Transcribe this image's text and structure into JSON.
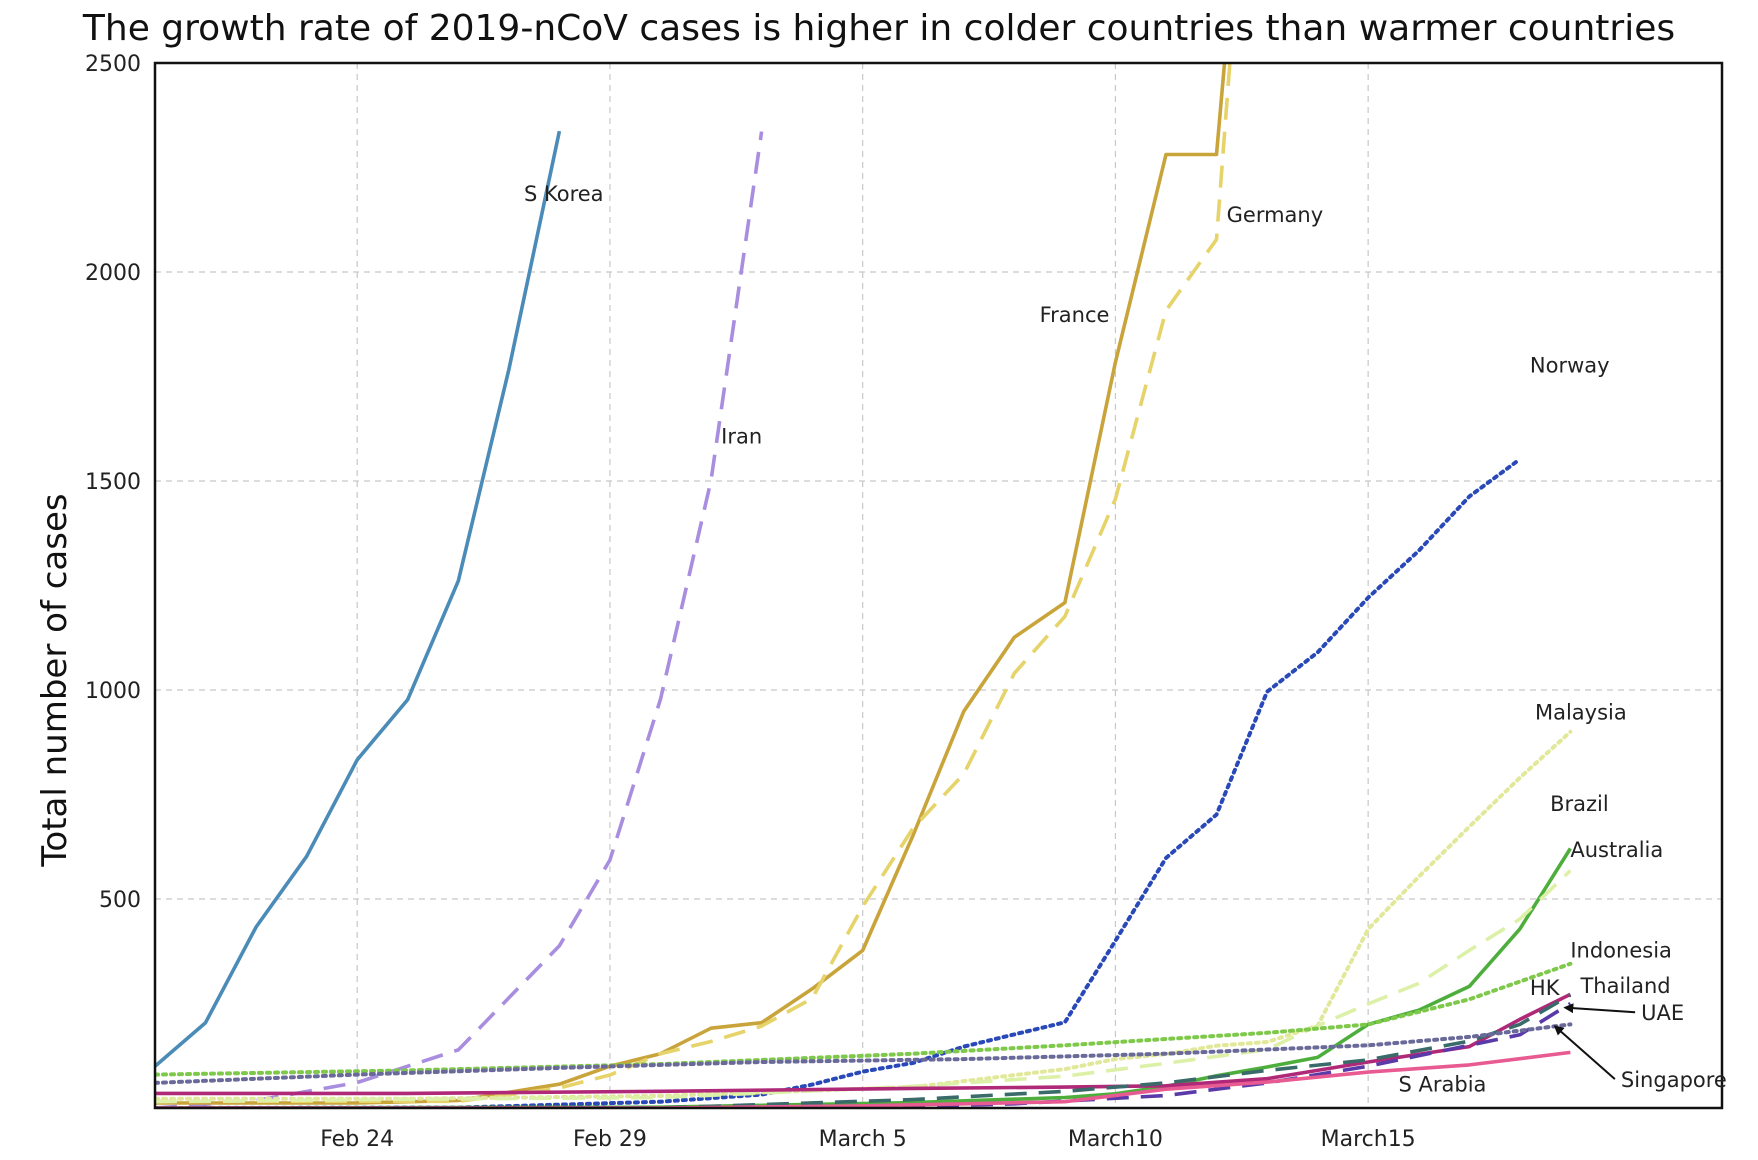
{
  "chart_data": {
    "type": "line",
    "title": "The growth rate of 2019-nCoV cases is higher in colder countries than warmer countries",
    "xlabel": "",
    "ylabel": "Total number of cases",
    "x_tick_labels": [
      "Feb 24",
      "Feb 29",
      "March 5",
      "March10",
      "March15"
    ],
    "x_tick_days": [
      4,
      9,
      14,
      19,
      24
    ],
    "y_ticks": [
      500,
      1000,
      1500,
      2000,
      2500
    ],
    "xlim": [
      0,
      31
    ],
    "ylim": [
      0,
      2500
    ],
    "grid": true,
    "legend": "inline labels",
    "series": [
      {
        "name": "S Korea",
        "color": "#4a8bb8",
        "dash": "solid",
        "label_day": 7.3,
        "label_value": 2170,
        "x": [
          0,
          1,
          2,
          3,
          4,
          5,
          6,
          7,
          8
        ],
        "values": [
          100,
          204,
          433,
          602,
          833,
          977,
          1261,
          1766,
          2337
        ]
      },
      {
        "name": "Iran",
        "color": "#a98ee0",
        "dash": "dashed",
        "label_day": 11.2,
        "label_value": 1590,
        "x": [
          0,
          2,
          4,
          6,
          8,
          9,
          10,
          11,
          12
        ],
        "values": [
          0,
          18,
          61,
          139,
          388,
          593,
          978,
          1501,
          2336
        ]
      },
      {
        "name": "France",
        "color": "#c9a43a",
        "dash": "solid",
        "label_day": 17.5,
        "label_value": 1880,
        "x": [
          0,
          2,
          4,
          6,
          8,
          9,
          10,
          11,
          12,
          13,
          14,
          15,
          16,
          17,
          18,
          19,
          20,
          21,
          22
        ],
        "values": [
          12,
          12,
          12,
          18,
          57,
          100,
          130,
          191,
          204,
          285,
          377,
          653,
          949,
          1126,
          1209,
          1784,
          2281,
          2281,
          3661
        ]
      },
      {
        "name": "Germany",
        "color": "#e6d36a",
        "dash": "dashed",
        "label_day": 21.2,
        "label_value": 2120,
        "x": [
          0,
          2,
          4,
          6,
          8,
          9,
          10,
          11,
          12,
          13,
          14,
          15,
          16,
          17,
          18,
          19,
          20,
          21,
          22
        ],
        "values": [
          16,
          16,
          16,
          16,
          48,
          79,
          130,
          159,
          196,
          262,
          482,
          670,
          799,
          1040,
          1176,
          1457,
          1908,
          2078,
          3675
        ]
      },
      {
        "name": "Norway",
        "color": "#2a49b8",
        "dash": "dotted",
        "label_day": 27.2,
        "label_value": 1760,
        "x": [
          0,
          6,
          10,
          12,
          13,
          14,
          15,
          16,
          17,
          18,
          19,
          20,
          21,
          22,
          23,
          24,
          25,
          26,
          27
        ],
        "values": [
          0,
          1,
          15,
          32,
          56,
          87,
          108,
          147,
          176,
          205,
          400,
          598,
          702,
          996,
          1090,
          1221,
          1333,
          1463,
          1552
        ]
      },
      {
        "name": "Malaysia",
        "color": "#e2e89a",
        "dash": "dotted",
        "label_day": 27.3,
        "label_value": 930,
        "x": [
          0,
          5,
          10,
          15,
          18,
          19,
          20,
          21,
          22,
          23,
          24,
          25,
          26,
          27,
          28
        ],
        "values": [
          22,
          22,
          29,
          50,
          93,
          117,
          129,
          149,
          158,
          197,
          428,
          553,
          673,
          790,
          900
        ]
      },
      {
        "name": "Brazil",
        "color": "#4eae3c",
        "dash": "solid",
        "label_day": 27.6,
        "label_value": 710,
        "x": [
          0,
          10,
          15,
          18,
          19,
          20,
          21,
          22,
          23,
          24,
          25,
          26,
          27,
          28
        ],
        "values": [
          0,
          2,
          13,
          25,
          34,
          52,
          77,
          98,
          121,
          200,
          234,
          291,
          428,
          621
        ]
      },
      {
        "name": "Australia",
        "color": "#ddf0a8",
        "dash": "dashed",
        "label_day": 28.0,
        "label_value": 600,
        "x": [
          0,
          5,
          10,
          15,
          18,
          20,
          22,
          23,
          24,
          25,
          26,
          27,
          28
        ],
        "values": [
          15,
          21,
          25,
          52,
          76,
          107,
          140,
          197,
          249,
          298,
          377,
          452,
          568
        ]
      },
      {
        "name": "Indonesia",
        "color": "#7ec84a",
        "dash": "dotted",
        "label_day": 28.0,
        "label_value": 360,
        "x": [
          0,
          5,
          10,
          15,
          18,
          20,
          22,
          24,
          26,
          28
        ],
        "values": [
          80,
          90,
          105,
          130,
          150,
          165,
          180,
          200,
          260,
          345
        ]
      },
      {
        "name": "Thailand",
        "color": "#b02878",
        "dash": "solid",
        "label_day": 28.2,
        "label_value": 275,
        "x": [
          0,
          5,
          10,
          15,
          18,
          20,
          22,
          24,
          26,
          27,
          28
        ],
        "values": [
          35,
          35,
          40,
          47,
          50,
          53,
          70,
          110,
          147,
          212,
          272
        ]
      },
      {
        "name": "HK",
        "color": "#3a6a6a",
        "dash": "dashed",
        "label_day": 27.2,
        "label_value": 270,
        "x": [
          0,
          5,
          10,
          15,
          18,
          20,
          22,
          24,
          26,
          27,
          28
        ],
        "values": [
          0,
          0,
          0,
          20,
          40,
          60,
          90,
          115,
          160,
          200,
          270
        ]
      },
      {
        "name": "UAE",
        "color": "#5a3aa8",
        "dash": "dashed",
        "label_day": 29.4,
        "label_value": 210,
        "x": [
          0,
          10,
          14,
          17,
          20,
          22,
          24,
          26,
          27,
          28
        ],
        "values": [
          0,
          0,
          0,
          10,
          30,
          60,
          100,
          150,
          175,
          250
        ]
      },
      {
        "name": "Singapore",
        "color": "#6a6a9a",
        "dash": "dotted",
        "label_day": 29.0,
        "label_value": 50,
        "x": [
          0,
          4,
          8,
          12,
          16,
          20,
          24,
          26,
          28
        ],
        "values": [
          60,
          80,
          96,
          110,
          117,
          130,
          150,
          170,
          200
        ]
      },
      {
        "name": "S Arabia",
        "color": "#e85a92",
        "dash": "solid",
        "label_day": 24.6,
        "label_value": 40,
        "x": [
          0,
          10,
          14,
          16,
          18,
          20,
          22,
          24,
          26,
          28
        ],
        "values": [
          0,
          0,
          5,
          10,
          15,
          45,
          62,
          86,
          103,
          133
        ]
      }
    ],
    "annotations": [
      {
        "text": "UAE",
        "arrow_to_day": 27.9,
        "arrow_to_value": 240
      },
      {
        "text": "Singapore",
        "arrow_to_day": 27.7,
        "arrow_to_value": 195
      }
    ]
  }
}
